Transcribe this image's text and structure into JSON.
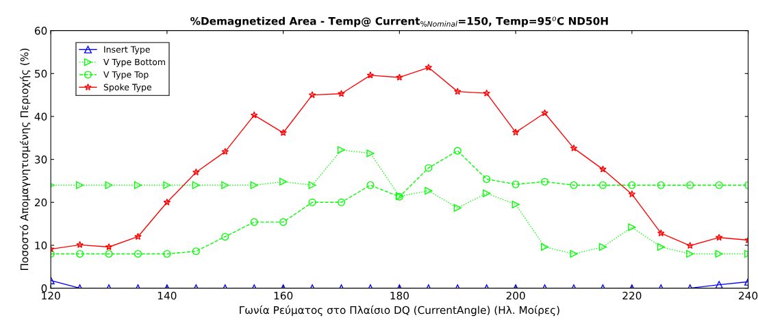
{
  "chart_data": {
    "type": "line",
    "title": "%Demagnetized Area - Temp@ Current$_{%Nominal}$=150, Temp=95$^{o}$C ND50H",
    "xlabel": "Γωνία Ρεύματος στο Πλαίσιο DQ (CurrentAngle) (Ηλ. Μοίρες)",
    "ylabel": "Ποσοστό Απομαγνητισμένης Περιοχής (%)",
    "x": [
      120,
      125,
      130,
      135,
      140,
      145,
      150,
      155,
      160,
      165,
      170,
      175,
      180,
      185,
      190,
      195,
      200,
      205,
      210,
      215,
      220,
      225,
      230,
      235,
      240
    ],
    "series": [
      {
        "name": "Insert Type",
        "color": "#0000ff",
        "marker": "triangle",
        "line_style": "solid",
        "values": [
          1.8,
          0,
          0,
          0,
          0,
          0,
          0,
          0,
          0,
          0,
          0,
          0,
          0,
          0,
          0,
          0,
          0,
          0,
          0,
          0,
          0,
          0,
          0,
          0.8,
          1.5
        ]
      },
      {
        "name": "V Type Bottom",
        "color": "#00ff00",
        "marker": "triangle_right",
        "line_style": "dotted",
        "values": [
          24,
          24,
          24,
          24,
          24,
          24,
          24,
          24,
          24.8,
          24,
          32.2,
          31.4,
          21.4,
          22.7,
          18.7,
          22.1,
          19.5,
          9.6,
          8,
          9.6,
          14.2,
          9.6,
          8,
          8,
          8
        ]
      },
      {
        "name": "V Type Top",
        "color": "#00ff00",
        "marker": "circle",
        "line_style": "dashed",
        "values": [
          8,
          8,
          8,
          8,
          8,
          8.6,
          12,
          15.4,
          15.4,
          20,
          20,
          24,
          21.3,
          28,
          32,
          25.4,
          24.2,
          24.8,
          24,
          24,
          24,
          24,
          24,
          24,
          24
        ]
      },
      {
        "name": "Spoke Type",
        "color": "#ff0000",
        "marker": "star",
        "line_style": "solid",
        "values": [
          9.1,
          10.1,
          9.6,
          12,
          20,
          27,
          31.8,
          40.3,
          36.2,
          45,
          45.3,
          49.6,
          49.1,
          51.4,
          45.8,
          45.4,
          36.3,
          40.8,
          32.6,
          27.7,
          21.9,
          12.8,
          9.9,
          11.8,
          11.2
        ]
      }
    ],
    "xlim": [
      120,
      240
    ],
    "xticks": [
      120,
      140,
      160,
      180,
      200,
      220,
      240
    ],
    "ylim": [
      0,
      60
    ],
    "yticks": [
      0,
      10,
      20,
      30,
      40,
      50,
      60
    ],
    "grid": false,
    "legend": "top left"
  }
}
